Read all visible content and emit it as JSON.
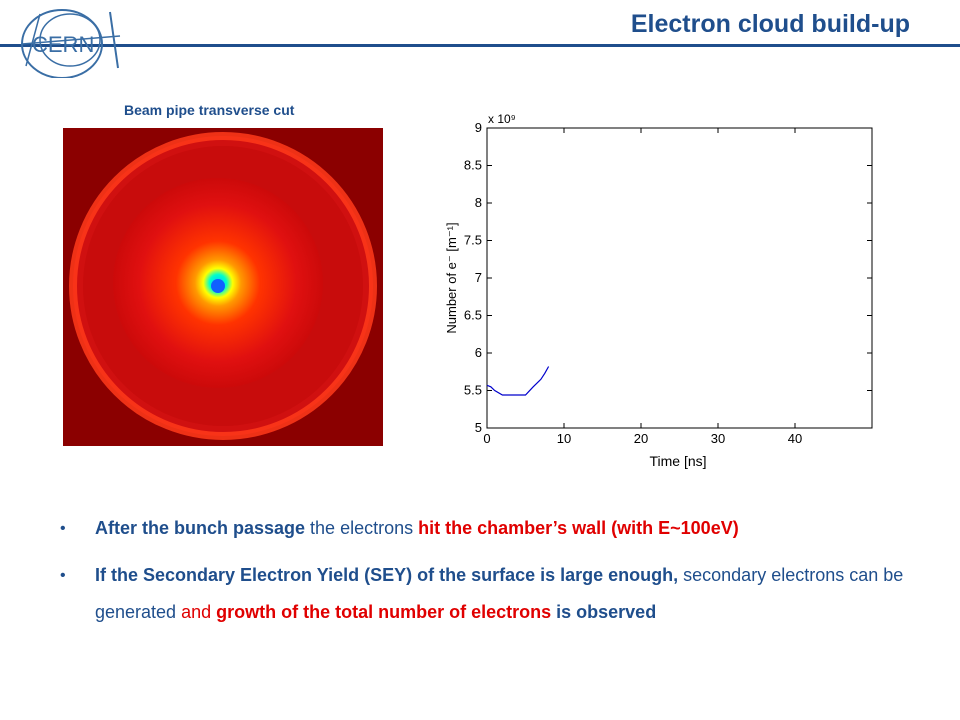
{
  "header": {
    "title": "Electron cloud build-up",
    "logo_text": "CERN",
    "accent_color": "#1f4e8c"
  },
  "figure": {
    "caption": "Beam pipe transverse cut"
  },
  "chart_data": {
    "type": "line",
    "xlabel": "Time [ns]",
    "ylabel": "Number of e⁻ [m⁻¹]",
    "y_multiplier": "x 10⁹",
    "xlim": [
      0,
      50
    ],
    "ylim": [
      5,
      9
    ],
    "x_ticks": [
      "0",
      "10",
      "20",
      "30",
      "40"
    ],
    "y_ticks": [
      "5",
      "5.5",
      "6",
      "6.5",
      "7",
      "7.5",
      "8",
      "8.5",
      "9"
    ],
    "series": [
      {
        "color": "#0000cc",
        "x": [
          0,
          0.5,
          1,
          2,
          3,
          4,
          5,
          6,
          7,
          7.5,
          8
        ],
        "y": [
          5.57,
          5.55,
          5.5,
          5.44,
          5.44,
          5.44,
          5.44,
          5.55,
          5.65,
          5.73,
          5.82
        ]
      }
    ]
  },
  "bullets": [
    [
      {
        "text": "After the bunch passage",
        "style": "b"
      },
      {
        "text": " the electrons ",
        "style": ""
      },
      {
        "text": "hit the chamber’s wall (with E~100eV)",
        "style": "red-b"
      }
    ],
    [
      {
        "text": "If the Secondary Electron Yield (SEY) of the surface is large enough,",
        "style": "b"
      },
      {
        "text": " secondary electrons can be generated ",
        "style": ""
      },
      {
        "text": "and ",
        "style": "red"
      },
      {
        "text": "growth of the total number of electrons",
        "style": "red-b"
      },
      {
        "text": " is observed",
        "style": "b"
      }
    ]
  ]
}
